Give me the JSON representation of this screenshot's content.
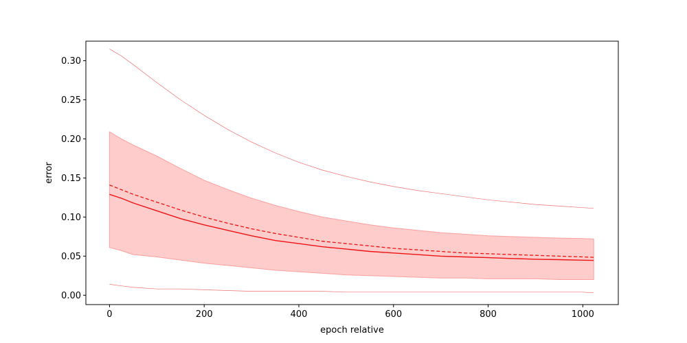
{
  "chart_data": {
    "type": "line",
    "title": "",
    "xlabel": "epoch relative",
    "ylabel": "error",
    "xlim": [
      -50,
      1075
    ],
    "ylim": [
      -0.012,
      0.325
    ],
    "xticks": [
      0,
      200,
      400,
      600,
      800,
      1000
    ],
    "xtick_labels": [
      "0",
      "200",
      "400",
      "600",
      "800",
      "1000"
    ],
    "yticks": [
      0.0,
      0.05,
      0.1,
      0.15,
      0.2,
      0.25,
      0.3
    ],
    "ytick_labels": [
      "0.00",
      "0.05",
      "0.10",
      "0.15",
      "0.20",
      "0.25",
      "0.30"
    ],
    "grid": false,
    "legend": "none",
    "colors": {
      "line": "#ee1111",
      "band": "#ffcccc",
      "band_edge": "#ff9f9f",
      "thin": "#f07070"
    },
    "x": [
      0,
      25,
      50,
      100,
      150,
      200,
      250,
      300,
      350,
      400,
      450,
      500,
      550,
      600,
      650,
      700,
      750,
      800,
      850,
      900,
      950,
      1000,
      1023
    ],
    "series": [
      {
        "style": "solid",
        "values": [
          0.129,
          0.124,
          0.118,
          0.108,
          0.098,
          0.09,
          0.083,
          0.076,
          0.07,
          0.066,
          0.062,
          0.059,
          0.056,
          0.054,
          0.052,
          0.05,
          0.049,
          0.048,
          0.047,
          0.046,
          0.0455,
          0.0448,
          0.0445
        ]
      },
      {
        "style": "dashed",
        "values": [
          0.141,
          0.135,
          0.129,
          0.119,
          0.109,
          0.1,
          0.092,
          0.085,
          0.079,
          0.074,
          0.069,
          0.066,
          0.063,
          0.06,
          0.058,
          0.056,
          0.054,
          0.053,
          0.052,
          0.051,
          0.05,
          0.049,
          0.0485
        ]
      },
      {
        "style": "thin-upper",
        "values": [
          0.315,
          0.306,
          0.295,
          0.272,
          0.25,
          0.23,
          0.212,
          0.196,
          0.182,
          0.17,
          0.16,
          0.152,
          0.145,
          0.139,
          0.134,
          0.13,
          0.126,
          0.122,
          0.119,
          0.116,
          0.114,
          0.112,
          0.111
        ]
      },
      {
        "style": "thin-lower",
        "values": [
          0.014,
          0.012,
          0.01,
          0.008,
          0.008,
          0.007,
          0.006,
          0.005,
          0.005,
          0.005,
          0.005,
          0.004,
          0.004,
          0.004,
          0.004,
          0.004,
          0.004,
          0.004,
          0.004,
          0.004,
          0.004,
          0.004,
          0.003
        ]
      }
    ],
    "band": {
      "upper": [
        0.209,
        0.2,
        0.192,
        0.178,
        0.162,
        0.147,
        0.135,
        0.124,
        0.115,
        0.107,
        0.1,
        0.095,
        0.09,
        0.086,
        0.083,
        0.08,
        0.078,
        0.076,
        0.075,
        0.074,
        0.073,
        0.0725,
        0.072
      ],
      "lower": [
        0.061,
        0.057,
        0.052,
        0.049,
        0.045,
        0.041,
        0.038,
        0.035,
        0.032,
        0.03,
        0.028,
        0.026,
        0.025,
        0.024,
        0.023,
        0.022,
        0.022,
        0.021,
        0.021,
        0.021,
        0.02,
        0.02,
        0.02
      ]
    }
  }
}
